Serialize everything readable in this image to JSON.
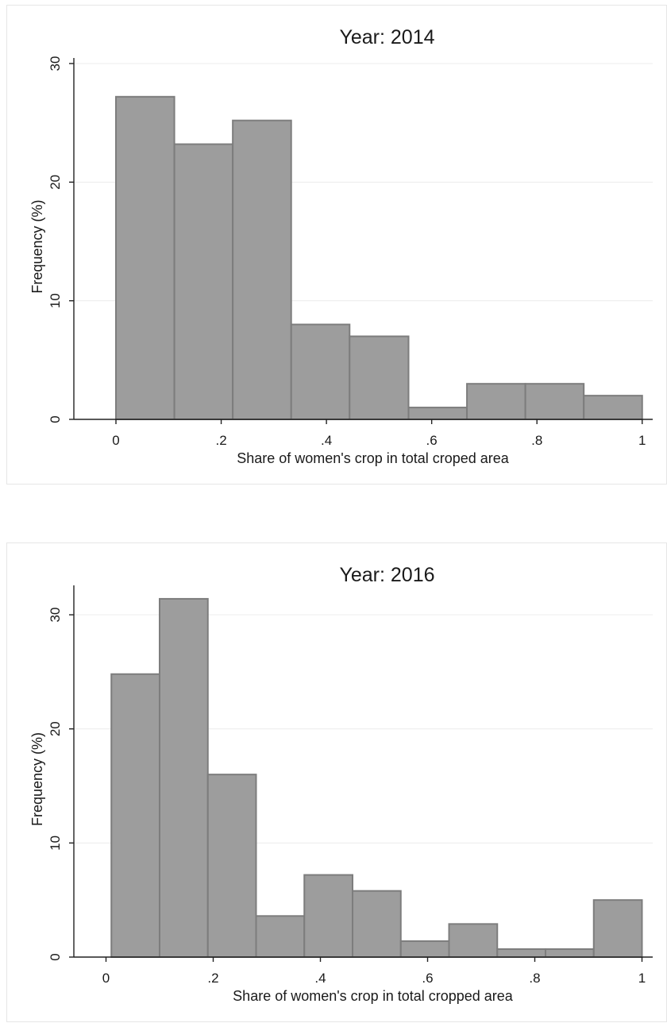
{
  "chart_data": [
    {
      "type": "bar",
      "title": "Year: 2014",
      "xlabel": "Share of women's crop in total croped area",
      "ylabel": "Frequency (%)",
      "bin_edges": [
        0.0,
        0.111,
        0.222,
        0.333,
        0.444,
        0.556,
        0.667,
        0.778,
        0.889,
        1.0
      ],
      "values": [
        27.2,
        23.2,
        25.2,
        8.0,
        7.0,
        1.0,
        3.0,
        3.0,
        2.0
      ],
      "xlim": [
        -0.08,
        1.02
      ],
      "ylim": [
        0,
        30.2
      ],
      "x_ticks": [
        0,
        0.2,
        0.4,
        0.6,
        0.8,
        1
      ],
      "x_tick_labels": [
        "0",
        ".2",
        ".4",
        ".6",
        ".8",
        "1"
      ],
      "y_ticks": [
        0,
        10,
        20,
        30
      ],
      "y_tick_labels": [
        "0",
        "10",
        "20",
        "30"
      ],
      "grid": true
    },
    {
      "type": "bar",
      "title": "Year: 2016",
      "xlabel": "Share of women's crop in total cropped area",
      "ylabel": "Frequency (%)",
      "bin_edges": [
        0.01,
        0.1,
        0.19,
        0.28,
        0.37,
        0.46,
        0.55,
        0.64,
        0.73,
        0.82,
        0.91,
        1.0
      ],
      "values": [
        24.8,
        31.4,
        16.0,
        3.6,
        7.2,
        5.8,
        1.4,
        2.9,
        0.7,
        0.7,
        5.0
      ],
      "xlim": [
        -0.06,
        1.02
      ],
      "ylim": [
        0,
        32.3
      ],
      "x_ticks": [
        0,
        0.2,
        0.4,
        0.6,
        0.8,
        1
      ],
      "x_tick_labels": [
        "0",
        ".2",
        ".4",
        ".6",
        ".8",
        "1"
      ],
      "y_ticks": [
        0,
        10,
        20,
        30
      ],
      "y_tick_labels": [
        "0",
        "10",
        "20",
        "30"
      ],
      "grid": true
    }
  ]
}
